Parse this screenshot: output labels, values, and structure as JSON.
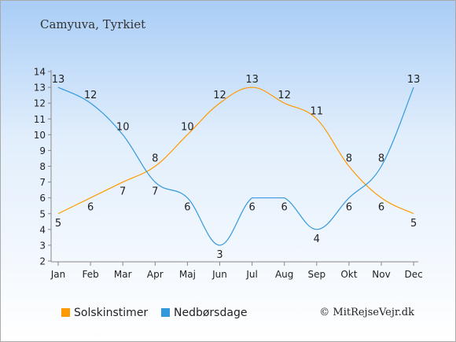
{
  "title": "Camyuva, Tyrkiet",
  "copyright": "© MitRejseVejr.dk",
  "chart_data": {
    "type": "line",
    "categories": [
      "Jan",
      "Feb",
      "Mar",
      "Apr",
      "Maj",
      "Jun",
      "Jul",
      "Aug",
      "Sep",
      "Okt",
      "Nov",
      "Dec"
    ],
    "ylim": [
      2,
      14
    ],
    "yticks": [
      2,
      3,
      4,
      5,
      6,
      7,
      8,
      9,
      10,
      11,
      12,
      13,
      14
    ],
    "grid": false,
    "legend_position": "bottom",
    "series": [
      {
        "name": "Solskinstimer",
        "color": "#ff9900",
        "values": [
          5,
          6,
          7,
          8,
          10,
          12,
          13,
          12,
          11,
          8,
          6,
          5
        ]
      },
      {
        "name": "Nedbørsdage",
        "color": "#3399dd",
        "values": [
          13,
          12,
          10,
          7,
          6,
          3,
          6,
          6,
          4,
          6,
          8,
          13
        ]
      }
    ]
  }
}
